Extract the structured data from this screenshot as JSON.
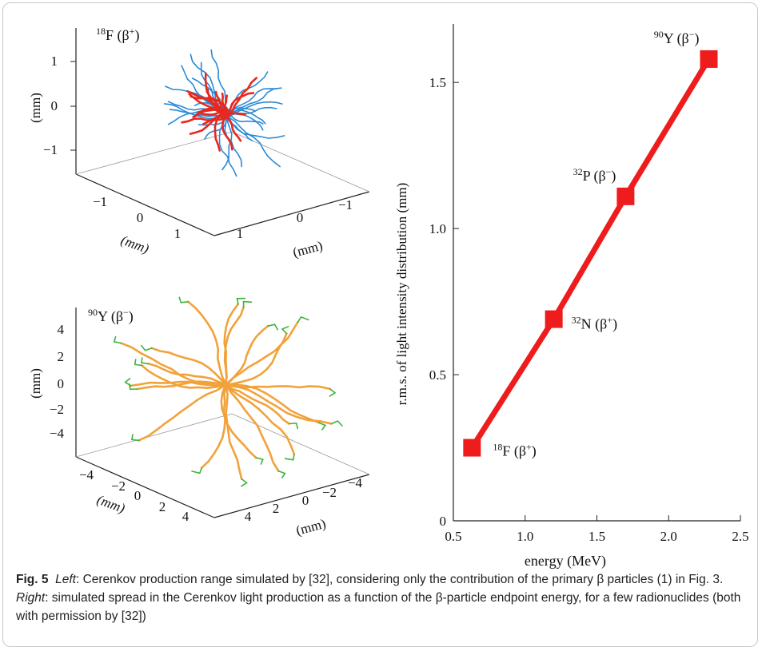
{
  "left_panels": {
    "top": {
      "label_mass": "18",
      "label_element": "F (β",
      "label_charge": "+",
      "label_close": ")",
      "z_ticks": [
        "1",
        "0",
        "−1"
      ],
      "x_ticks": [
        "−1",
        "0",
        "1"
      ],
      "y_ticks": [
        "1",
        "0",
        "−1"
      ],
      "z_label": "(mm)",
      "x_label": "(mm)",
      "y_label": "(mm)",
      "colors": {
        "primary": "#e8281e",
        "secondary": "#2a8ad6"
      }
    },
    "bottom": {
      "label_mass": "90",
      "label_element": "Y (β",
      "label_charge": "−",
      "label_close": ")",
      "z_ticks": [
        "4",
        "2",
        "0",
        "−2",
        "−4"
      ],
      "x_ticks": [
        "−4",
        "−2",
        "0",
        "2",
        "4"
      ],
      "y_ticks": [
        "4",
        "2",
        "0",
        "−2",
        "−4"
      ],
      "z_label": "(mm)",
      "x_label": "(mm)",
      "y_label": "(mm)",
      "colors": {
        "primary": "#f2a23a",
        "secondary": "#3cb43c"
      }
    }
  },
  "chart_data": {
    "type": "line",
    "xlabel": "energy (MeV)",
    "ylabel": "r.m.s. of light intensity distribution (mm)",
    "xlim": [
      0.5,
      2.5
    ],
    "ylim": [
      0,
      1.7
    ],
    "x_ticks": [
      0.5,
      1.0,
      1.5,
      2.0,
      2.5
    ],
    "x_tick_labels": [
      "0.5",
      "1.0",
      "1.5",
      "2.0",
      "2.5"
    ],
    "y_ticks": [
      0,
      0.5,
      1.0,
      1.5
    ],
    "y_tick_labels": [
      "0",
      "0.5",
      "1.0",
      "1.5"
    ],
    "color": "#ee1c1c",
    "points": [
      {
        "x": 0.63,
        "y": 0.25,
        "mass": "18",
        "element": "F (β",
        "charge": "+",
        "close": ")",
        "label_side": "right-below"
      },
      {
        "x": 1.2,
        "y": 0.69,
        "mass": "32",
        "element": "N (β",
        "charge": "+",
        "close": ")",
        "label_side": "right"
      },
      {
        "x": 1.7,
        "y": 1.11,
        "mass": "32",
        "element": "P (β",
        "charge": "−",
        "close": ")",
        "label_side": "left-above"
      },
      {
        "x": 2.28,
        "y": 1.58,
        "mass": "90",
        "element": "Y (β",
        "charge": "−",
        "close": ")",
        "label_side": "left-above"
      }
    ]
  },
  "caption": {
    "fig_label": "Fig. 5",
    "left_word": "Left",
    "left_text": ": Cerenkov production range simulated by [32], considering only the contribution of the primary β particles (1) in Fig. 3. ",
    "right_word": "Right",
    "right_text": ": simulated spread in the Cerenkov light production as a function of the β-particle endpoint energy, for a few radionuclides (both with permission by [32])"
  }
}
